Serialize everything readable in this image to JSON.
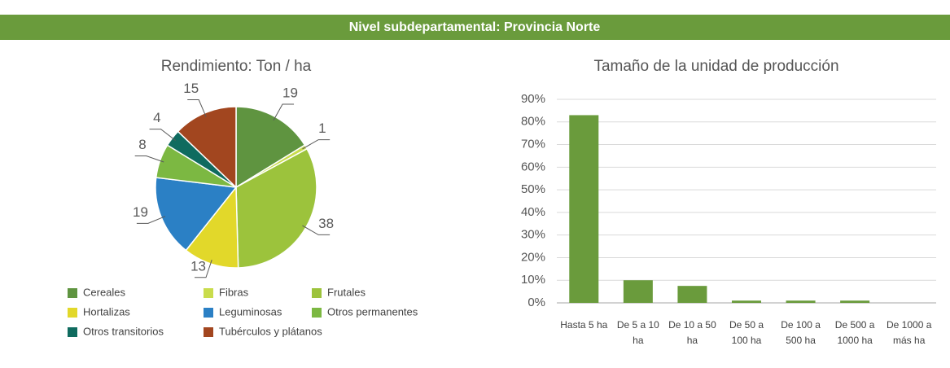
{
  "header": {
    "title": "Nivel subdepartamental: Provincia Norte"
  },
  "chart_data": [
    {
      "type": "pie",
      "title": "Rendimiento: Ton / ha",
      "categories": [
        "Cereales",
        "Fibras",
        "Frutales",
        "Hortalizas",
        "Leguminosas",
        "Otros permanentes",
        "Otros transitorios",
        "Tubérculos y plátanos"
      ],
      "values": [
        19,
        1,
        38,
        13,
        19,
        8,
        4,
        15
      ],
      "colors": [
        "#5f9440",
        "#c9dc4c",
        "#9cc33c",
        "#e2d82a",
        "#2b80c5",
        "#7cb842",
        "#0f6b5f",
        "#a2461f"
      ]
    },
    {
      "type": "bar",
      "title": "Tamaño de la unidad de producción",
      "categories": [
        "Hasta 5 ha",
        "De 5 a 10 ha",
        "De 10 a 50 ha",
        "De 50 a 100 ha",
        "De 100 a 500 ha",
        "De 500 a 1000 ha",
        "De 1000 a más ha"
      ],
      "values": [
        83,
        10,
        7.5,
        1,
        1,
        1,
        0
      ],
      "color": "#6a9b3c",
      "ylim": [
        0,
        90
      ],
      "yticks": [
        {
          "value": 0,
          "label": "0%"
        },
        {
          "value": 10,
          "label": "10%"
        },
        {
          "value": 20,
          "label": "20%"
        },
        {
          "value": 30,
          "label": "30%"
        },
        {
          "value": 40,
          "label": "40%"
        },
        {
          "value": 50,
          "label": "50%"
        },
        {
          "value": 60,
          "label": "60%"
        },
        {
          "value": 70,
          "label": "70%"
        },
        {
          "value": 80,
          "label": "80%"
        },
        {
          "value": 90,
          "label": "90%"
        }
      ],
      "grid": true
    }
  ]
}
